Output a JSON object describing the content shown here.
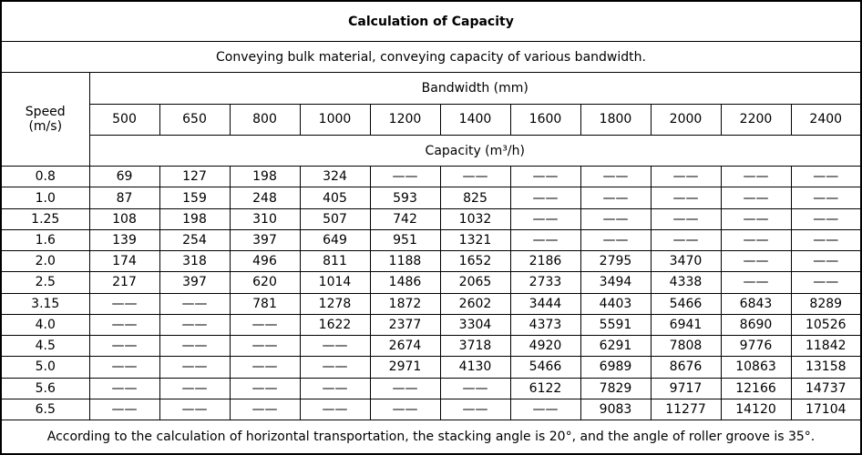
{
  "title": "Calculation of Capacity",
  "subtitle": "Conveying bulk material, conveying capacity of various bandwidth.",
  "footer": "According to the calculation of horizontal transportation, the stacking angle is 20°, and the angle of roller groove is 35°.",
  "table": {
    "speed_header": "Speed\n(m/s)",
    "bandwidth_header": "Bandwidth (mm)",
    "capacity_header": "Capacity (m³/h)",
    "bandwidths": [
      "500",
      "650",
      "800",
      "1000",
      "1200",
      "1400",
      "1600",
      "1800",
      "2000",
      "2200",
      "2400"
    ],
    "rows": [
      {
        "speed": "0.8",
        "values": [
          "69",
          "127",
          "198",
          "324",
          "——",
          "——",
          "——",
          "——",
          "——",
          "——",
          "——"
        ]
      },
      {
        "speed": "1.0",
        "values": [
          "87",
          "159",
          "248",
          "405",
          "593",
          "825",
          "——",
          "——",
          "——",
          "——",
          "——"
        ]
      },
      {
        "speed": "1.25",
        "values": [
          "108",
          "198",
          "310",
          "507",
          "742",
          "1032",
          "——",
          "——",
          "——",
          "——",
          "——"
        ]
      },
      {
        "speed": "1.6",
        "values": [
          "139",
          "254",
          "397",
          "649",
          "951",
          "1321",
          "——",
          "——",
          "——",
          "——",
          "——"
        ]
      },
      {
        "speed": "2.0",
        "values": [
          "174",
          "318",
          "496",
          "811",
          "1188",
          "1652",
          "2186",
          "2795",
          "3470",
          "——",
          "——"
        ]
      },
      {
        "speed": "2.5",
        "values": [
          "217",
          "397",
          "620",
          "1014",
          "1486",
          "2065",
          "2733",
          "3494",
          "4338",
          "——",
          "——"
        ]
      },
      {
        "speed": "3.15",
        "values": [
          "——",
          "——",
          "781",
          "1278",
          "1872",
          "2602",
          "3444",
          "4403",
          "5466",
          "6843",
          "8289"
        ]
      },
      {
        "speed": "4.0",
        "values": [
          "——",
          "——",
          "——",
          "1622",
          "2377",
          "3304",
          "4373",
          "5591",
          "6941",
          "8690",
          "10526"
        ]
      },
      {
        "speed": "4.5",
        "values": [
          "——",
          "——",
          "——",
          "——",
          "2674",
          "3718",
          "4920",
          "6291",
          "7808",
          "9776",
          "11842"
        ]
      },
      {
        "speed": "5.0",
        "values": [
          "——",
          "——",
          "——",
          "——",
          "2971",
          "4130",
          "5466",
          "6989",
          "8676",
          "10863",
          "13158"
        ]
      },
      {
        "speed": "5.6",
        "values": [
          "——",
          "——",
          "——",
          "——",
          "——",
          "——",
          "6122",
          "7829",
          "9717",
          "12166",
          "14737"
        ]
      },
      {
        "speed": "6.5",
        "values": [
          "——",
          "——",
          "——",
          "——",
          "——",
          "——",
          "——",
          "9083",
          "11277",
          "14120",
          "17104"
        ]
      }
    ]
  },
  "chart_data": {
    "type": "table",
    "title": "Calculation of Capacity",
    "subtitle": "Conveying bulk material, conveying capacity of various bandwidth.",
    "row_header": "Speed (m/s)",
    "column_group_header": "Bandwidth (mm)",
    "value_unit_header": "Capacity (m³/h)",
    "columns_bandwidth_mm": [
      500,
      650,
      800,
      1000,
      1200,
      1400,
      1600,
      1800,
      2000,
      2200,
      2400
    ],
    "rows": [
      {
        "speed_m_s": 0.8,
        "capacities_m3_h": [
          69,
          127,
          198,
          324,
          null,
          null,
          null,
          null,
          null,
          null,
          null
        ]
      },
      {
        "speed_m_s": 1.0,
        "capacities_m3_h": [
          87,
          159,
          248,
          405,
          593,
          825,
          null,
          null,
          null,
          null,
          null
        ]
      },
      {
        "speed_m_s": 1.25,
        "capacities_m3_h": [
          108,
          198,
          310,
          507,
          742,
          1032,
          null,
          null,
          null,
          null,
          null
        ]
      },
      {
        "speed_m_s": 1.6,
        "capacities_m3_h": [
          139,
          254,
          397,
          649,
          951,
          1321,
          null,
          null,
          null,
          null,
          null
        ]
      },
      {
        "speed_m_s": 2.0,
        "capacities_m3_h": [
          174,
          318,
          496,
          811,
          1188,
          1652,
          2186,
          2795,
          3470,
          null,
          null
        ]
      },
      {
        "speed_m_s": 2.5,
        "capacities_m3_h": [
          217,
          397,
          620,
          1014,
          1486,
          2065,
          2733,
          3494,
          4338,
          null,
          null
        ]
      },
      {
        "speed_m_s": 3.15,
        "capacities_m3_h": [
          null,
          null,
          781,
          1278,
          1872,
          2602,
          3444,
          4403,
          5466,
          6843,
          8289
        ]
      },
      {
        "speed_m_s": 4.0,
        "capacities_m3_h": [
          null,
          null,
          null,
          1622,
          2377,
          3304,
          4373,
          5591,
          6941,
          8690,
          10526
        ]
      },
      {
        "speed_m_s": 4.5,
        "capacities_m3_h": [
          null,
          null,
          null,
          null,
          2674,
          3718,
          4920,
          6291,
          7808,
          9776,
          11842
        ]
      },
      {
        "speed_m_s": 5.0,
        "capacities_m3_h": [
          null,
          null,
          null,
          null,
          2971,
          4130,
          5466,
          6989,
          8676,
          10863,
          13158
        ]
      },
      {
        "speed_m_s": 5.6,
        "capacities_m3_h": [
          null,
          null,
          null,
          null,
          null,
          null,
          6122,
          7829,
          9717,
          12166,
          14737
        ]
      },
      {
        "speed_m_s": 6.5,
        "capacities_m3_h": [
          null,
          null,
          null,
          null,
          null,
          null,
          null,
          9083,
          11277,
          14120,
          17104
        ]
      }
    ],
    "footnote": "According to the calculation of horizontal transportation, the stacking angle is 20°, and the angle of roller groove is 35°."
  }
}
